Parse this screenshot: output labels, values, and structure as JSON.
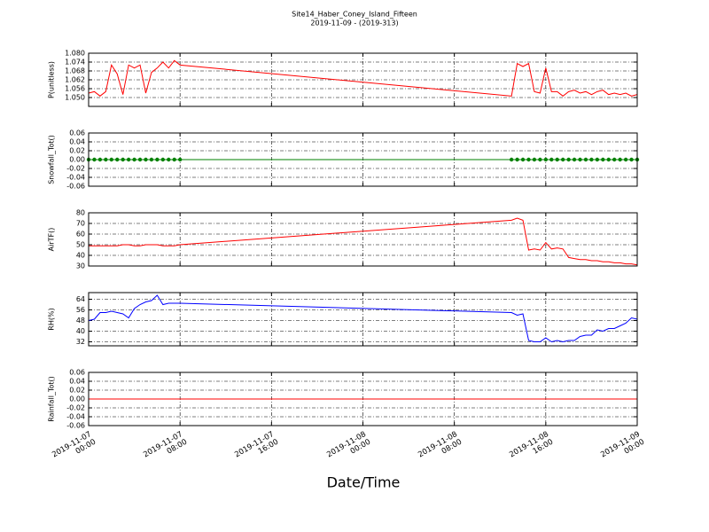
{
  "header": {
    "title": "Site14_Haber_Coney_Island_Fifteen",
    "subtitle": "2019-11-09 - (2019-313)"
  },
  "chart_data": [
    {
      "type": "line",
      "ylabel": "P(unitless)",
      "color": "#ff0000",
      "grid": true,
      "x": [
        "2019-11-07 00:00",
        "2019-11-07 00:30",
        "2019-11-07 01:00",
        "2019-11-07 01:30",
        "2019-11-07 02:00",
        "2019-11-07 02:30",
        "2019-11-07 03:00",
        "2019-11-07 03:30",
        "2019-11-07 04:00",
        "2019-11-07 04:30",
        "2019-11-07 05:00",
        "2019-11-07 05:30",
        "2019-11-07 06:00",
        "2019-11-07 06:30",
        "2019-11-07 07:00",
        "2019-11-07 07:30",
        "2019-11-07 08:00",
        "2019-11-08 13:00",
        "2019-11-08 13:30",
        "2019-11-08 14:00",
        "2019-11-08 14:30",
        "2019-11-08 15:00",
        "2019-11-08 15:30",
        "2019-11-08 16:00",
        "2019-11-08 16:30",
        "2019-11-08 17:00",
        "2019-11-08 17:30",
        "2019-11-08 18:00",
        "2019-11-08 18:30",
        "2019-11-08 19:00",
        "2019-11-08 19:30",
        "2019-11-08 20:00",
        "2019-11-08 20:30",
        "2019-11-08 21:00",
        "2019-11-08 21:30",
        "2019-11-08 22:00",
        "2019-11-08 22:30",
        "2019-11-08 23:00",
        "2019-11-08 23:30",
        "2019-11-09 00:00"
      ],
      "values": [
        1.053,
        1.054,
        1.051,
        1.054,
        1.072,
        1.066,
        1.052,
        1.072,
        1.07,
        1.072,
        1.053,
        1.067,
        1.07,
        1.074,
        1.07,
        1.075,
        1.072,
        1.051,
        1.073,
        1.071,
        1.073,
        1.054,
        1.053,
        1.07,
        1.054,
        1.054,
        1.051,
        1.054,
        1.055,
        1.053,
        1.054,
        1.052,
        1.054,
        1.055,
        1.052,
        1.053,
        1.052,
        1.053,
        1.051,
        1.052
      ],
      "ylim": [
        1.044,
        1.08
      ],
      "yticks": [
        {
          "value": 1.05,
          "label": "1.050"
        },
        1.056,
        1.062,
        1.068,
        1.074,
        {
          "value": 1.08,
          "label": "1.080"
        }
      ]
    },
    {
      "type": "line",
      "ylabel": "Snowfall_Tot()",
      "color": "#008000",
      "markers": true,
      "grid": true,
      "x": [
        "2019-11-07 00:00",
        "2019-11-07 00:30",
        "2019-11-07 01:00",
        "2019-11-07 01:30",
        "2019-11-07 02:00",
        "2019-11-07 02:30",
        "2019-11-07 03:00",
        "2019-11-07 03:30",
        "2019-11-07 04:00",
        "2019-11-07 04:30",
        "2019-11-07 05:00",
        "2019-11-07 05:30",
        "2019-11-07 06:00",
        "2019-11-07 06:30",
        "2019-11-07 07:00",
        "2019-11-07 07:30",
        "2019-11-07 08:00",
        "2019-11-08 13:00",
        "2019-11-08 13:30",
        "2019-11-08 14:00",
        "2019-11-08 14:30",
        "2019-11-08 15:00",
        "2019-11-08 15:30",
        "2019-11-08 16:00",
        "2019-11-08 16:30",
        "2019-11-08 17:00",
        "2019-11-08 17:30",
        "2019-11-08 18:00",
        "2019-11-08 18:30",
        "2019-11-08 19:00",
        "2019-11-08 19:30",
        "2019-11-08 20:00",
        "2019-11-08 20:30",
        "2019-11-08 21:00",
        "2019-11-08 21:30",
        "2019-11-08 22:00",
        "2019-11-08 22:30",
        "2019-11-08 23:00",
        "2019-11-08 23:30",
        "2019-11-09 00:00"
      ],
      "values": [
        0,
        0,
        0,
        0,
        0,
        0,
        0,
        0,
        0,
        0,
        0,
        0,
        0,
        0,
        0,
        0,
        0,
        0,
        0,
        0,
        0,
        0,
        0,
        0,
        0,
        0,
        0,
        0,
        0,
        0,
        0,
        0,
        0,
        0,
        0,
        0,
        0,
        0,
        0,
        0
      ],
      "ylim": [
        -0.06,
        0.06
      ],
      "yticks": [
        -0.06,
        -0.04,
        -0.02,
        {
          "value": 0,
          "label": "0.00"
        },
        0.02,
        0.04,
        0.06
      ]
    },
    {
      "type": "line",
      "ylabel": "AirTF()",
      "color": "#ff0000",
      "grid": true,
      "x": [
        "2019-11-07 00:00",
        "2019-11-07 00:30",
        "2019-11-07 01:00",
        "2019-11-07 01:30",
        "2019-11-07 02:00",
        "2019-11-07 02:30",
        "2019-11-07 03:00",
        "2019-11-07 03:30",
        "2019-11-07 04:00",
        "2019-11-07 04:30",
        "2019-11-07 05:00",
        "2019-11-07 05:30",
        "2019-11-07 06:00",
        "2019-11-07 06:30",
        "2019-11-07 07:00",
        "2019-11-07 07:30",
        "2019-11-07 08:00",
        "2019-11-08 13:00",
        "2019-11-08 13:30",
        "2019-11-08 14:00",
        "2019-11-08 14:30",
        "2019-11-08 15:00",
        "2019-11-08 15:30",
        "2019-11-08 16:00",
        "2019-11-08 16:30",
        "2019-11-08 17:00",
        "2019-11-08 17:30",
        "2019-11-08 18:00",
        "2019-11-08 18:30",
        "2019-11-08 19:00",
        "2019-11-08 19:30",
        "2019-11-08 20:00",
        "2019-11-08 20:30",
        "2019-11-08 21:00",
        "2019-11-08 21:30",
        "2019-11-08 22:00",
        "2019-11-08 22:30",
        "2019-11-08 23:00",
        "2019-11-08 23:30",
        "2019-11-09 00:00"
      ],
      "values": [
        49,
        49,
        49,
        49,
        49,
        49,
        50,
        50,
        49,
        49,
        50,
        50,
        50,
        49,
        49,
        49,
        50,
        73,
        75,
        73,
        45,
        46,
        45,
        52,
        46,
        47,
        46,
        38,
        37,
        36,
        36,
        35,
        35,
        34,
        34,
        33,
        33,
        32,
        32,
        31
      ],
      "ylim": [
        30,
        80
      ],
      "yticks": [
        30,
        40,
        50,
        60,
        70,
        80
      ]
    },
    {
      "type": "line",
      "ylabel": "RH(%)",
      "color": "#0000ff",
      "grid": true,
      "x": [
        "2019-11-07 00:00",
        "2019-11-07 00:30",
        "2019-11-07 01:00",
        "2019-11-07 01:30",
        "2019-11-07 02:00",
        "2019-11-07 02:30",
        "2019-11-07 03:00",
        "2019-11-07 03:30",
        "2019-11-07 04:00",
        "2019-11-07 04:30",
        "2019-11-07 05:00",
        "2019-11-07 05:30",
        "2019-11-07 06:00",
        "2019-11-07 06:30",
        "2019-11-07 07:00",
        "2019-11-07 07:30",
        "2019-11-07 08:00",
        "2019-11-08 13:00",
        "2019-11-08 13:30",
        "2019-11-08 14:00",
        "2019-11-08 14:30",
        "2019-11-08 15:00",
        "2019-11-08 15:30",
        "2019-11-08 16:00",
        "2019-11-08 16:30",
        "2019-11-08 17:00",
        "2019-11-08 17:30",
        "2019-11-08 18:00",
        "2019-11-08 18:30",
        "2019-11-08 19:00",
        "2019-11-08 19:30",
        "2019-11-08 20:00",
        "2019-11-08 20:30",
        "2019-11-08 21:00",
        "2019-11-08 21:30",
        "2019-11-08 22:00",
        "2019-11-08 22:30",
        "2019-11-08 23:00",
        "2019-11-08 23:30",
        "2019-11-09 00:00"
      ],
      "values": [
        48,
        49,
        54,
        54,
        55,
        54,
        53,
        50,
        57,
        60,
        62,
        63,
        67,
        60,
        61,
        61,
        61,
        54,
        52,
        53,
        33,
        32,
        32,
        35,
        32,
        33,
        32,
        33,
        33,
        36,
        37,
        37,
        41,
        40,
        42,
        42,
        44,
        46,
        50,
        49
      ],
      "ylim": [
        29,
        69
      ],
      "yticks": [
        32,
        40,
        48,
        56,
        64
      ]
    },
    {
      "type": "line",
      "ylabel": "Rainfall_Tot()",
      "color": "#ff0000",
      "grid": true,
      "xlabel": "Date/Time",
      "x": [
        "2019-11-07 00:00",
        "2019-11-07 00:30",
        "2019-11-07 01:00",
        "2019-11-07 01:30",
        "2019-11-07 02:00",
        "2019-11-07 02:30",
        "2019-11-07 03:00",
        "2019-11-07 03:30",
        "2019-11-07 04:00",
        "2019-11-07 04:30",
        "2019-11-07 05:00",
        "2019-11-07 05:30",
        "2019-11-07 06:00",
        "2019-11-07 06:30",
        "2019-11-07 07:00",
        "2019-11-07 07:30",
        "2019-11-07 08:00",
        "2019-11-08 13:00",
        "2019-11-08 13:30",
        "2019-11-08 14:00",
        "2019-11-08 14:30",
        "2019-11-08 15:00",
        "2019-11-08 15:30",
        "2019-11-08 16:00",
        "2019-11-08 16:30",
        "2019-11-08 17:00",
        "2019-11-08 17:30",
        "2019-11-08 18:00",
        "2019-11-08 18:30",
        "2019-11-08 19:00",
        "2019-11-08 19:30",
        "2019-11-08 20:00",
        "2019-11-08 20:30",
        "2019-11-08 21:00",
        "2019-11-08 21:30",
        "2019-11-08 22:00",
        "2019-11-08 22:30",
        "2019-11-08 23:00",
        "2019-11-08 23:30",
        "2019-11-09 00:00"
      ],
      "values": [
        0,
        0,
        0,
        0,
        0,
        0,
        0,
        0,
        0,
        0,
        0,
        0,
        0,
        0,
        0,
        0,
        0,
        0,
        0,
        0,
        0,
        0,
        0,
        0,
        0,
        0,
        0,
        0,
        0,
        0,
        0,
        0,
        0,
        0,
        0,
        0,
        0,
        0,
        0,
        0
      ],
      "ylim": [
        -0.06,
        0.06
      ],
      "yticks": [
        -0.06,
        -0.04,
        -0.02,
        {
          "value": 0,
          "label": "0.00"
        },
        0.02,
        0.04,
        0.06
      ],
      "xlim": [
        "2019-11-07 00:00",
        "2019-11-09 00:00"
      ],
      "xticks": [
        "2019-11-07 00:00",
        "2019-11-07 08:00",
        "2019-11-07 16:00",
        "2019-11-08 00:00",
        "2019-11-08 08:00",
        "2019-11-08 16:00",
        "2019-11-09 00:00"
      ]
    }
  ]
}
